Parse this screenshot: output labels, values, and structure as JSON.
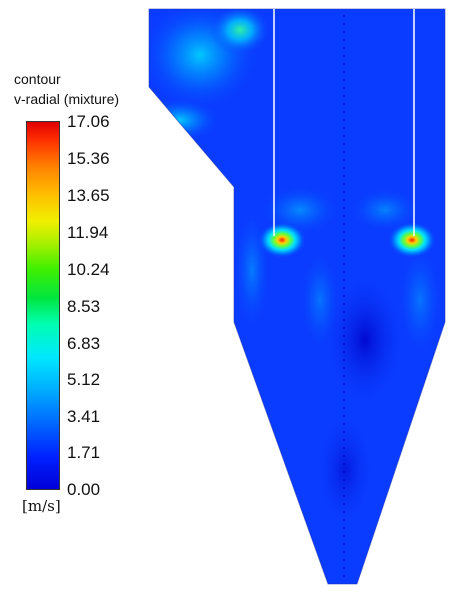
{
  "legend": {
    "title_line1": "contour",
    "title_line2": "v-radial (mixture)",
    "ticks": [
      "17.06",
      "15.36",
      "13.65",
      "11.94",
      "10.24",
      "8.53",
      "6.83",
      "5.12",
      "3.41",
      "1.71",
      "0.00"
    ],
    "unit": "[m/s]"
  },
  "colors": {
    "low": "#0000d8",
    "high": "#e00000",
    "field": "#0a3cff"
  }
}
